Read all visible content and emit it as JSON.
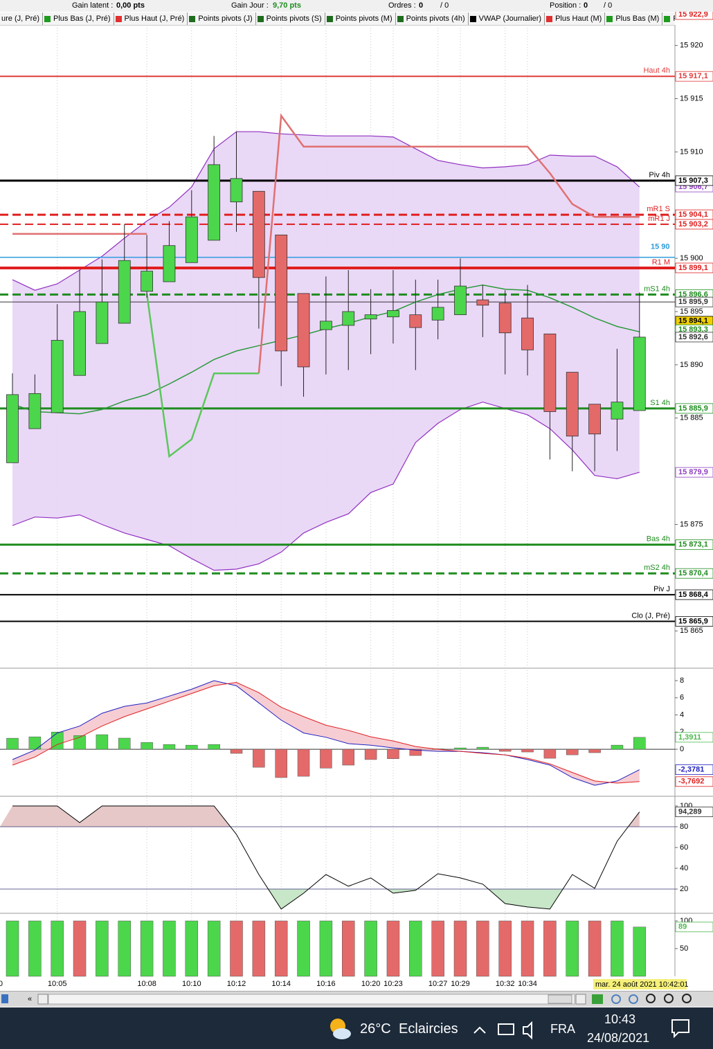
{
  "toolbar": {
    "gain_latent_label": "Gain latent :",
    "gain_latent": "0,00 pts",
    "gain_jour_label": "Gain Jour :",
    "gain_jour": "9,70 pts",
    "ordres_label": "Ordres :",
    "ordres": "0",
    "ordres_total": "/ 0",
    "position_label": "Position :",
    "position": "0",
    "position_total": "/ 0"
  },
  "legend": [
    {
      "label": "ure (J, Pré)",
      "color": null
    },
    {
      "label": "Plus Bas (J, Pré)",
      "color": "#1e9c1e"
    },
    {
      "label": "Plus Haut (J, Pré)",
      "color": "#e03030"
    },
    {
      "label": "Points pivots (J)",
      "color": "#1e6c1e"
    },
    {
      "label": "Points pivots (S)",
      "color": "#1e6c1e"
    },
    {
      "label": "Points pivots (M)",
      "color": "#1e6c1e"
    },
    {
      "label": "Points pivots (4h)",
      "color": "#1e6c1e"
    },
    {
      "label": "VWAP (Journalier)",
      "color": "#000000"
    },
    {
      "label": "Plus Haut (M)",
      "color": "#e03030"
    },
    {
      "label": "Plus Bas (M)",
      "color": "#1e9c1e"
    },
    {
      "label": "Plus",
      "color": "#1e9c1e"
    }
  ],
  "chart_data": {
    "type": "candlestick",
    "categories": [
      null,
      null,
      "10:05",
      null,
      null,
      null,
      "10:08",
      null,
      "10:10",
      null,
      "10:12",
      null,
      "10:14",
      null,
      "10:16",
      null,
      "10:20",
      "10:23",
      null,
      "10:27",
      "10:29",
      null,
      "10:32",
      "10:34",
      null,
      null,
      null,
      null,
      null
    ],
    "edge_label": "0",
    "date_box": "mar. 24 août 2021 10:42:01",
    "ylim": [
      15861.5,
      15923.1
    ],
    "yticks": [
      {
        "value": 15920,
        "label": "15 920"
      },
      {
        "value": 15915,
        "label": "15 915"
      },
      {
        "value": 15910,
        "label": "15 910"
      },
      {
        "value": 15900,
        "label": "15 900"
      },
      {
        "value": 15895,
        "label": "15 895"
      },
      {
        "value": 15890,
        "label": "15 890"
      },
      {
        "value": 15885,
        "label": "15 885"
      },
      {
        "value": 15875,
        "label": "15 875"
      },
      {
        "value": 15865,
        "label": "15 865"
      }
    ],
    "colors": {
      "up": "#4cd64c",
      "down": "#e46a6a"
    },
    "open": [
      15880.8,
      15884.0,
      15885.5,
      15889.0,
      15892.0,
      15893.9,
      15896.9,
      15897.8,
      15899.6,
      15901.7,
      15905.3,
      15906.3,
      15902.2,
      15896.7,
      15893.3,
      15893.7,
      15894.3,
      15894.5,
      15894.7,
      15894.2,
      15894.7,
      15896.1,
      15895.8,
      15894.4,
      15892.9,
      15889.3,
      15886.3,
      15884.9,
      15885.7
    ],
    "high": [
      15889.2,
      15889.1,
      15895.7,
      15898.9,
      15899.9,
      15903.2,
      15902.2,
      15903.5,
      15906.4,
      15911.5,
      15911.9,
      15906.3,
      15902.2,
      15896.7,
      15898.3,
      15898.9,
      15897.1,
      15898.9,
      15898.0,
      15898.0,
      15900.0,
      15897.5,
      15897.0,
      15897.5,
      15892.9,
      15889.3,
      15886.3,
      15891.5,
      15896.8
    ],
    "low": [
      15880.8,
      15884.0,
      15885.5,
      15889.0,
      15892.0,
      15893.9,
      15896.3,
      15897.8,
      15899.6,
      15901.7,
      15902.5,
      15893.4,
      15888.0,
      15887.0,
      15889.1,
      15889.5,
      15891.0,
      15892.0,
      15889.5,
      15892.4,
      15894.7,
      15892.6,
      15889.1,
      15889.0,
      15881.1,
      15880.0,
      15880.0,
      15881.9,
      15885.7
    ],
    "close": [
      15887.2,
      15887.3,
      15892.3,
      15895.0,
      15895.9,
      15899.8,
      15898.8,
      15901.2,
      15903.9,
      15908.8,
      15907.5,
      15898.2,
      15891.3,
      15889.8,
      15894.1,
      15895.0,
      15894.7,
      15895.1,
      15893.5,
      15895.4,
      15897.4,
      15895.6,
      15893.0,
      15891.4,
      15885.6,
      15883.3,
      15883.5,
      15886.5,
      15892.6
    ],
    "bands": {
      "color": "#9030c0",
      "fill": "#e8d4f6",
      "upper": [
        15898.0,
        15897.0,
        15897.6,
        15898.9,
        15900.2,
        15901.9,
        15903.5,
        15904.8,
        15906.7,
        15910.3,
        15911.9,
        15911.9,
        15911.7,
        15911.6,
        15911.5,
        15911.5,
        15911.5,
        15911.4,
        15910.3,
        15909.2,
        15908.8,
        15908.5,
        15908.6,
        15908.8,
        15909.7,
        15909.6,
        15909.6,
        15908.6,
        15906.7
      ],
      "lower": [
        15874.9,
        15875.7,
        15875.6,
        15875.9,
        15875.0,
        15874.2,
        15873.6,
        15873.0,
        15871.8,
        15870.7,
        15870.8,
        15871.3,
        15872.4,
        15874.2,
        15875.2,
        15876.0,
        15878.0,
        15878.8,
        15882.7,
        15884.5,
        15885.8,
        15886.5,
        15885.9,
        15885.3,
        15884.0,
        15882.0,
        15879.6,
        15879.3,
        15879.9
      ]
    },
    "series": [
      {
        "color": "#2a9a3a",
        "width": 1.5,
        "values": [
          15886.3,
          15885.6,
          15885.5,
          15885.4,
          15885.8,
          15886.6,
          15887.2,
          15888.2,
          15889.3,
          15890.5,
          15891.3,
          15891.8,
          15892.3,
          15892.8,
          15893.4,
          15893.9,
          15894.5,
          15895.0,
          15895.9,
          15896.6,
          15897.1,
          15897.5,
          15897.1,
          15897.0,
          15896.3,
          15895.4,
          15894.4,
          15893.6,
          15893.1
        ]
      },
      {
        "color": "#e07070",
        "width": 2.5,
        "values": [
          15902.3,
          15902.3,
          15902.3,
          15902.3,
          15902.3,
          15902.3,
          15902.3,
          null,
          null,
          null,
          null,
          15889.2,
          15913.4,
          15910.5,
          15910.5,
          15910.5,
          15910.5,
          15910.5,
          15910.5,
          15910.5,
          15910.5,
          15910.5,
          15910.5,
          15910.5,
          15908.0,
          15905.1,
          15903.9,
          15903.9,
          15903.9
        ]
      },
      {
        "color": "#5ac85a",
        "width": 2.5,
        "values": [
          null,
          null,
          null,
          null,
          null,
          null,
          15896.7,
          15881.4,
          15883.0,
          15889.2,
          15889.2,
          15889.2,
          null,
          null,
          null,
          null,
          null,
          null,
          null,
          null,
          null,
          null,
          null,
          null,
          null,
          null,
          null,
          null,
          null
        ]
      }
    ],
    "levels": [
      {
        "name": "Haut 4h",
        "value": 15917.1,
        "label": "15 917,1",
        "color": "#e03c3c",
        "width": 2
      },
      {
        "name": "Piv 4h",
        "value": 15907.3,
        "label": "15 907,3",
        "color": "#000000",
        "width": 3
      },
      {
        "name": "mR1 S",
        "value": 15904.1,
        "label": "15 904,1",
        "color": "#e01e1e",
        "width": 3,
        "dash": true
      },
      {
        "name": "mR1 J",
        "value": 15903.2,
        "label": "15 903,2",
        "color": "#e01e1e",
        "width": 2,
        "dash": true
      },
      {
        "name": "15 90",
        "value": 15900.1,
        "color": "#2d9bdc",
        "width": 1.5
      },
      {
        "name": "R1 M",
        "value": 15899.1,
        "label": "15 899,1",
        "color": "#e01e1e",
        "width": 4
      },
      {
        "name": "mS1 4h",
        "value": 15896.6,
        "label": "15 896,6",
        "color": "#1e8c1e",
        "width": 3,
        "dash": true
      },
      {
        "value": 15895.9,
        "label": "15 895,9",
        "color": "#333333",
        "width": 1
      },
      {
        "name": "S1 4h",
        "value": 15885.9,
        "label": "15 885,9",
        "color": "#1e8c1e",
        "width": 3
      },
      {
        "name": "Bas 4h",
        "value": 15873.1,
        "label": "15 873,1",
        "color": "#1e8c1e",
        "width": 3
      },
      {
        "name": "mS2 4h",
        "value": 15870.4,
        "label": "15 870,4",
        "color": "#1e8c1e",
        "width": 3,
        "dash": true
      },
      {
        "name": "Piv J",
        "value": 15868.4,
        "label": "15 868,4",
        "color": "#000000",
        "width": 2
      },
      {
        "name": "Clo (J, Pré)",
        "value": 15865.9,
        "label": "15 865,9",
        "color": "#000000",
        "width": 2
      }
    ],
    "tags": [
      {
        "value": 15922.9,
        "label": "15 922,9",
        "color": "#e01e1e"
      },
      {
        "value": 15906.7,
        "label": "15 906,7",
        "color": "#9040c0"
      },
      {
        "value": 15894.1,
        "label": "15 894,1",
        "color": "#000000",
        "bg": "#f0d000"
      },
      {
        "value": 15893.3,
        "label": "15 893,3",
        "color": "#1e8c1e"
      },
      {
        "value": 15892.6,
        "label": "15 892,6",
        "color": "#333333"
      },
      {
        "value": 15879.9,
        "label": "15 879,9",
        "color": "#9040c0"
      }
    ],
    "macd": {
      "ylim": [
        -5.48,
        9.37
      ],
      "yticks": [
        8,
        6,
        4,
        2,
        0
      ],
      "histogram": [
        1.29,
        1.45,
        2.0,
        1.6,
        1.7,
        1.3,
        0.8,
        0.56,
        0.48,
        0.56,
        -0.48,
        -2.1,
        -3.3,
        -3.15,
        -2.2,
        -1.85,
        -1.2,
        -1.1,
        -0.73,
        0.05,
        0.16,
        0.24,
        -0.24,
        -0.32,
        -1.05,
        -0.65,
        -0.4,
        0.48,
        1.3911
      ],
      "histogram_label": "1,3911",
      "up_color": "#4cd64c",
      "down_color": "#e46a6a",
      "lines": [
        {
          "color": "#2020c0",
          "values": [
            -1.2,
            -0.1,
            1.9,
            2.7,
            4.2,
            5.0,
            5.4,
            6.2,
            7.0,
            8.0,
            7.4,
            5.4,
            3.4,
            1.9,
            1.4,
            0.65,
            0.48,
            0.16,
            -0.1,
            -0.24,
            -0.24,
            -0.4,
            -0.65,
            -1.2,
            -1.85,
            -3.3,
            -4.2,
            -3.7,
            -2.3781
          ],
          "label": "-2,3781"
        },
        {
          "color": "#e02020",
          "values": [
            -1.85,
            -0.9,
            0.56,
            1.4,
            2.7,
            3.8,
            4.7,
            5.6,
            6.5,
            7.4,
            7.8,
            6.6,
            4.9,
            3.8,
            2.8,
            2.2,
            1.45,
            0.97,
            0.32,
            0,
            -0.24,
            -0.48,
            -0.65,
            -1.05,
            -1.7,
            -2.7,
            -3.7,
            -3.95,
            -3.7692
          ],
          "label": "-3,7692"
        }
      ]
    },
    "stochastic": {
      "ylim": [
        -2.67,
        109.33
      ],
      "yticks": [
        20,
        40,
        60,
        80,
        100
      ],
      "levels": [
        80,
        20
      ],
      "color": "#000000",
      "values": [
        100,
        100,
        100,
        84,
        100,
        100,
        100,
        100,
        100,
        100,
        72.7,
        34,
        0.7,
        16,
        34,
        22.7,
        30.7,
        16,
        18.7,
        34.7,
        30.7,
        24.7,
        6,
        2.7,
        0.7,
        34,
        20.7,
        66,
        94.289
      ],
      "label": "94,289"
    },
    "volume": {
      "ylim": [
        0,
        112.5
      ],
      "yticks": [
        50,
        100
      ],
      "values": [
        100,
        100,
        100,
        100,
        100,
        100,
        100,
        100,
        100,
        100,
        100,
        100,
        100,
        100,
        100,
        100,
        100,
        100,
        100,
        100,
        100,
        100,
        100,
        100,
        100,
        100,
        100,
        100,
        89
      ],
      "label": "89",
      "colors": [
        "#4cd64c",
        "#4cd64c",
        "#4cd64c",
        "#e46a6a",
        "#4cd64c",
        "#4cd64c",
        "#4cd64c",
        "#4cd64c",
        "#4cd64c",
        "#4cd64c",
        "#e46a6a",
        "#e46a6a",
        "#e46a6a",
        "#4cd64c",
        "#4cd64c",
        "#e46a6a",
        "#4cd64c",
        "#e46a6a",
        "#4cd64c",
        "#e46a6a",
        "#e46a6a",
        "#e46a6a",
        "#e46a6a",
        "#e46a6a",
        "#e46a6a",
        "#4cd64c",
        "#e46a6a",
        "#4cd64c",
        "#4cd64c"
      ]
    }
  },
  "taskbar": {
    "temperature": "26°C",
    "weather": "Eclaircies",
    "language": "FRA",
    "time": "10:43",
    "date": "24/08/2021"
  }
}
